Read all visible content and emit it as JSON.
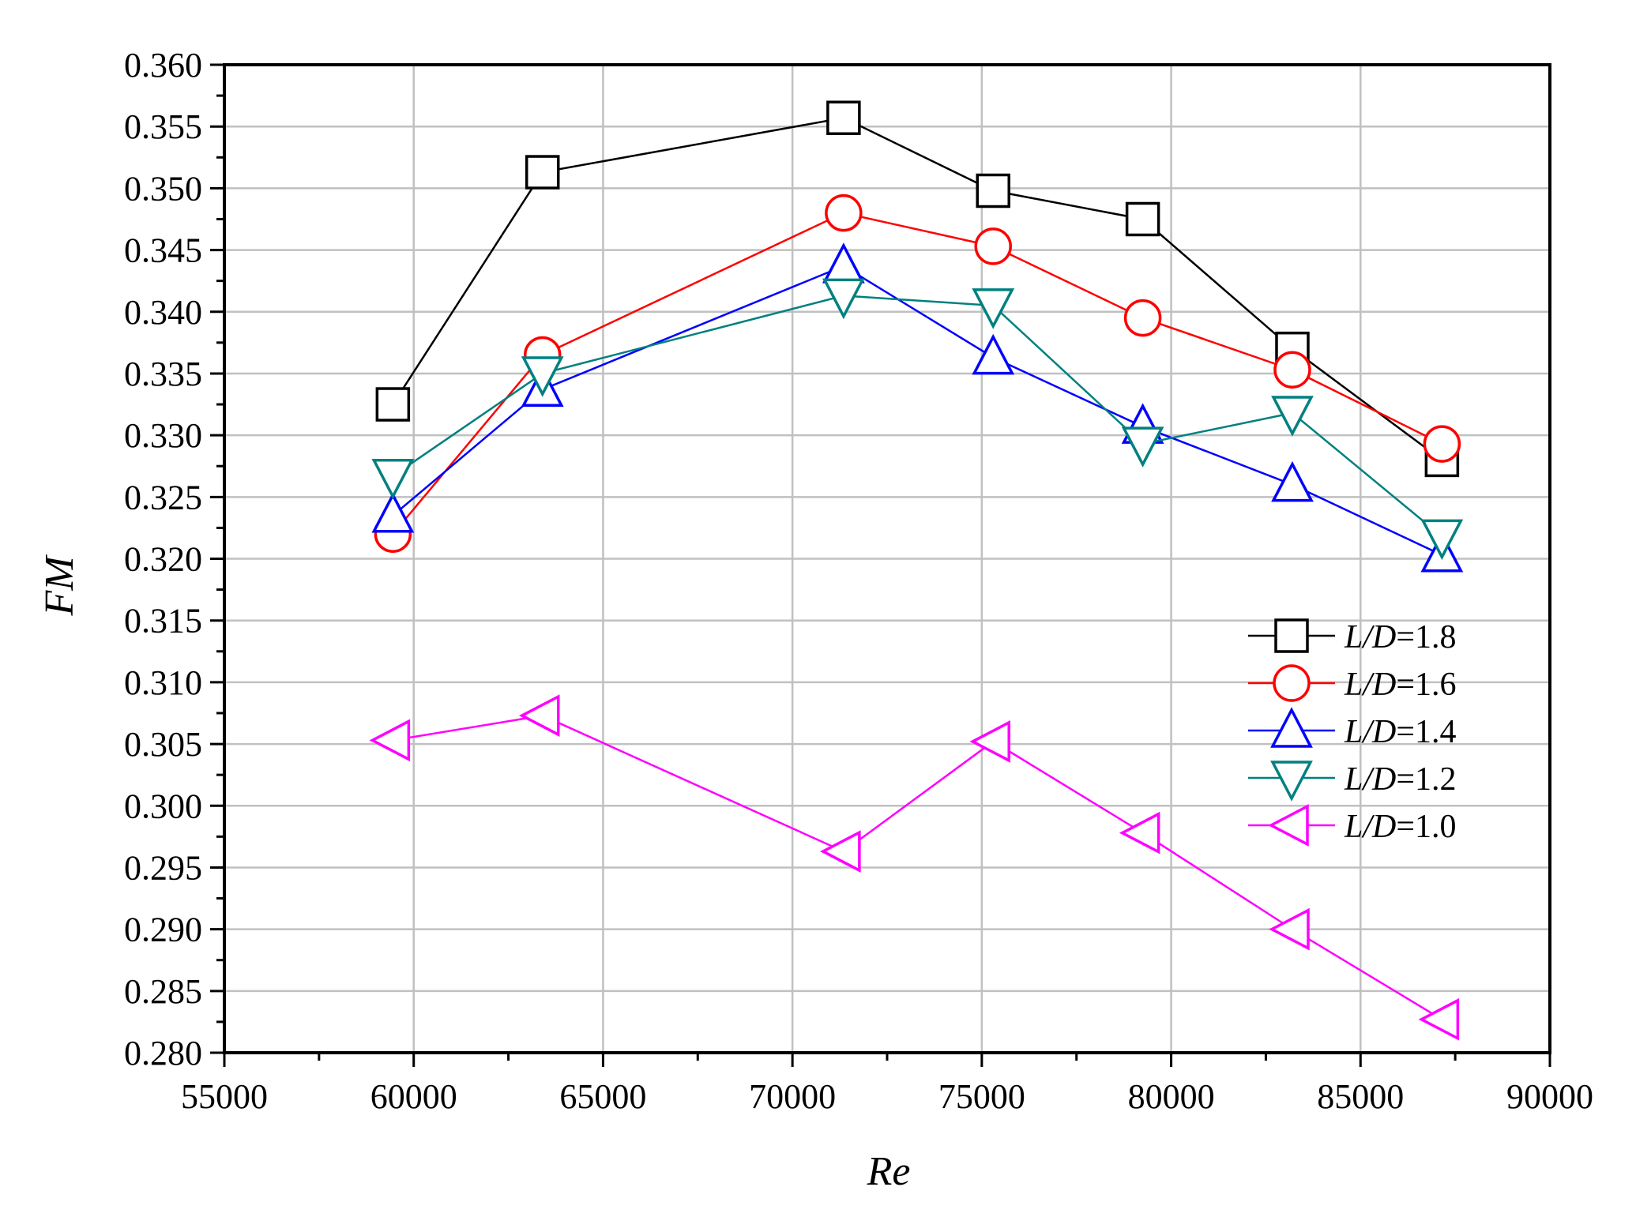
{
  "chart_data": {
    "type": "line",
    "xlabel": "Re",
    "ylabel": "FM",
    "xlim": [
      55000,
      90000
    ],
    "ylim": [
      0.28,
      0.36
    ],
    "x_ticks": [
      55000,
      60000,
      65000,
      70000,
      75000,
      80000,
      85000,
      90000
    ],
    "x_tick_labels": [
      "55000",
      "60000",
      "65000",
      "70000",
      "75000",
      "80000",
      "85000",
      "90000"
    ],
    "y_ticks": [
      0.28,
      0.285,
      0.29,
      0.295,
      0.3,
      0.305,
      0.31,
      0.315,
      0.32,
      0.325,
      0.33,
      0.335,
      0.34,
      0.345,
      0.35,
      0.355,
      0.36
    ],
    "y_tick_labels": [
      "0.280",
      "0.285",
      "0.290",
      "0.295",
      "0.300",
      "0.305",
      "0.310",
      "0.315",
      "0.320",
      "0.325",
      "0.330",
      "0.335",
      "0.340",
      "0.345",
      "0.350",
      "0.355",
      "0.360"
    ],
    "grid": true,
    "legend_position": "right",
    "x": [
      59450,
      63400,
      71350,
      75300,
      79250,
      83200,
      87150
    ],
    "series": [
      {
        "name": "L/D=1.8",
        "name_italic": "L/D",
        "name_rest": "=1.8",
        "marker": "square",
        "color": "#000000",
        "values": [
          0.3325,
          0.3513,
          0.3557,
          0.3498,
          0.3475,
          0.337,
          0.328
        ]
      },
      {
        "name": "L/D=1.6",
        "name_italic": "L/D",
        "name_rest": "=1.6",
        "marker": "circle",
        "color": "#ff0000",
        "values": [
          0.322,
          0.3365,
          0.348,
          0.3453,
          0.3395,
          0.3353,
          0.3293
        ]
      },
      {
        "name": "L/D=1.4",
        "name_italic": "L/D",
        "name_rest": "=1.4",
        "marker": "triangle-up",
        "color": "#0000ff",
        "values": [
          0.3235,
          0.3337,
          0.3437,
          0.3363,
          0.3307,
          0.326,
          0.3203
        ]
      },
      {
        "name": "L/D=1.2",
        "name_italic": "L/D",
        "name_rest": "=1.2",
        "marker": "triangle-down",
        "color": "#008080",
        "values": [
          0.3267,
          0.335,
          0.3413,
          0.3405,
          0.3293,
          0.3318,
          0.3218
        ]
      },
      {
        "name": "L/D=1.0",
        "name_italic": "L/D",
        "name_rest": "=1.0",
        "marker": "triangle-left",
        "color": "#ff00ff",
        "values": [
          0.3053,
          0.3073,
          0.2963,
          0.3052,
          0.2978,
          0.29,
          0.2827
        ]
      }
    ]
  }
}
